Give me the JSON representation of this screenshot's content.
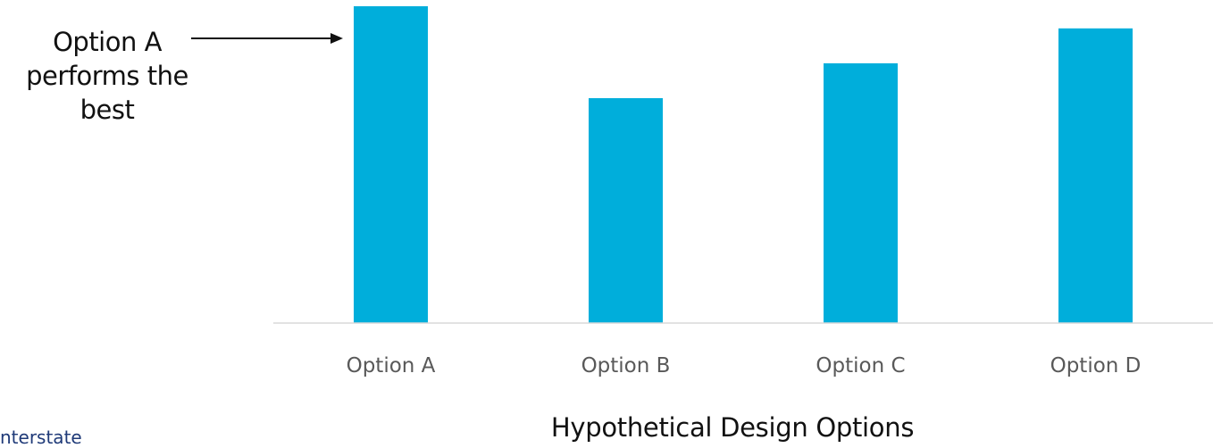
{
  "annotation": {
    "lines": [
      "Option A",
      "performs the",
      "best"
    ]
  },
  "footer": {
    "text": "nterstate"
  },
  "colors": {
    "bar": "#00AEDB",
    "axis": "#D9D9D9",
    "tick_label": "#595959",
    "text": "#111111",
    "footer": "#1F3A78"
  },
  "chart_data": {
    "type": "bar",
    "categories": [
      "Option A",
      "Option B",
      "Option C",
      "Option D"
    ],
    "values": [
      100,
      71,
      82,
      93
    ],
    "title": "",
    "xlabel": "Hypothetical Design Options",
    "ylabel": "",
    "ylim": [
      0,
      100
    ],
    "grid": false,
    "legend": "none"
  }
}
